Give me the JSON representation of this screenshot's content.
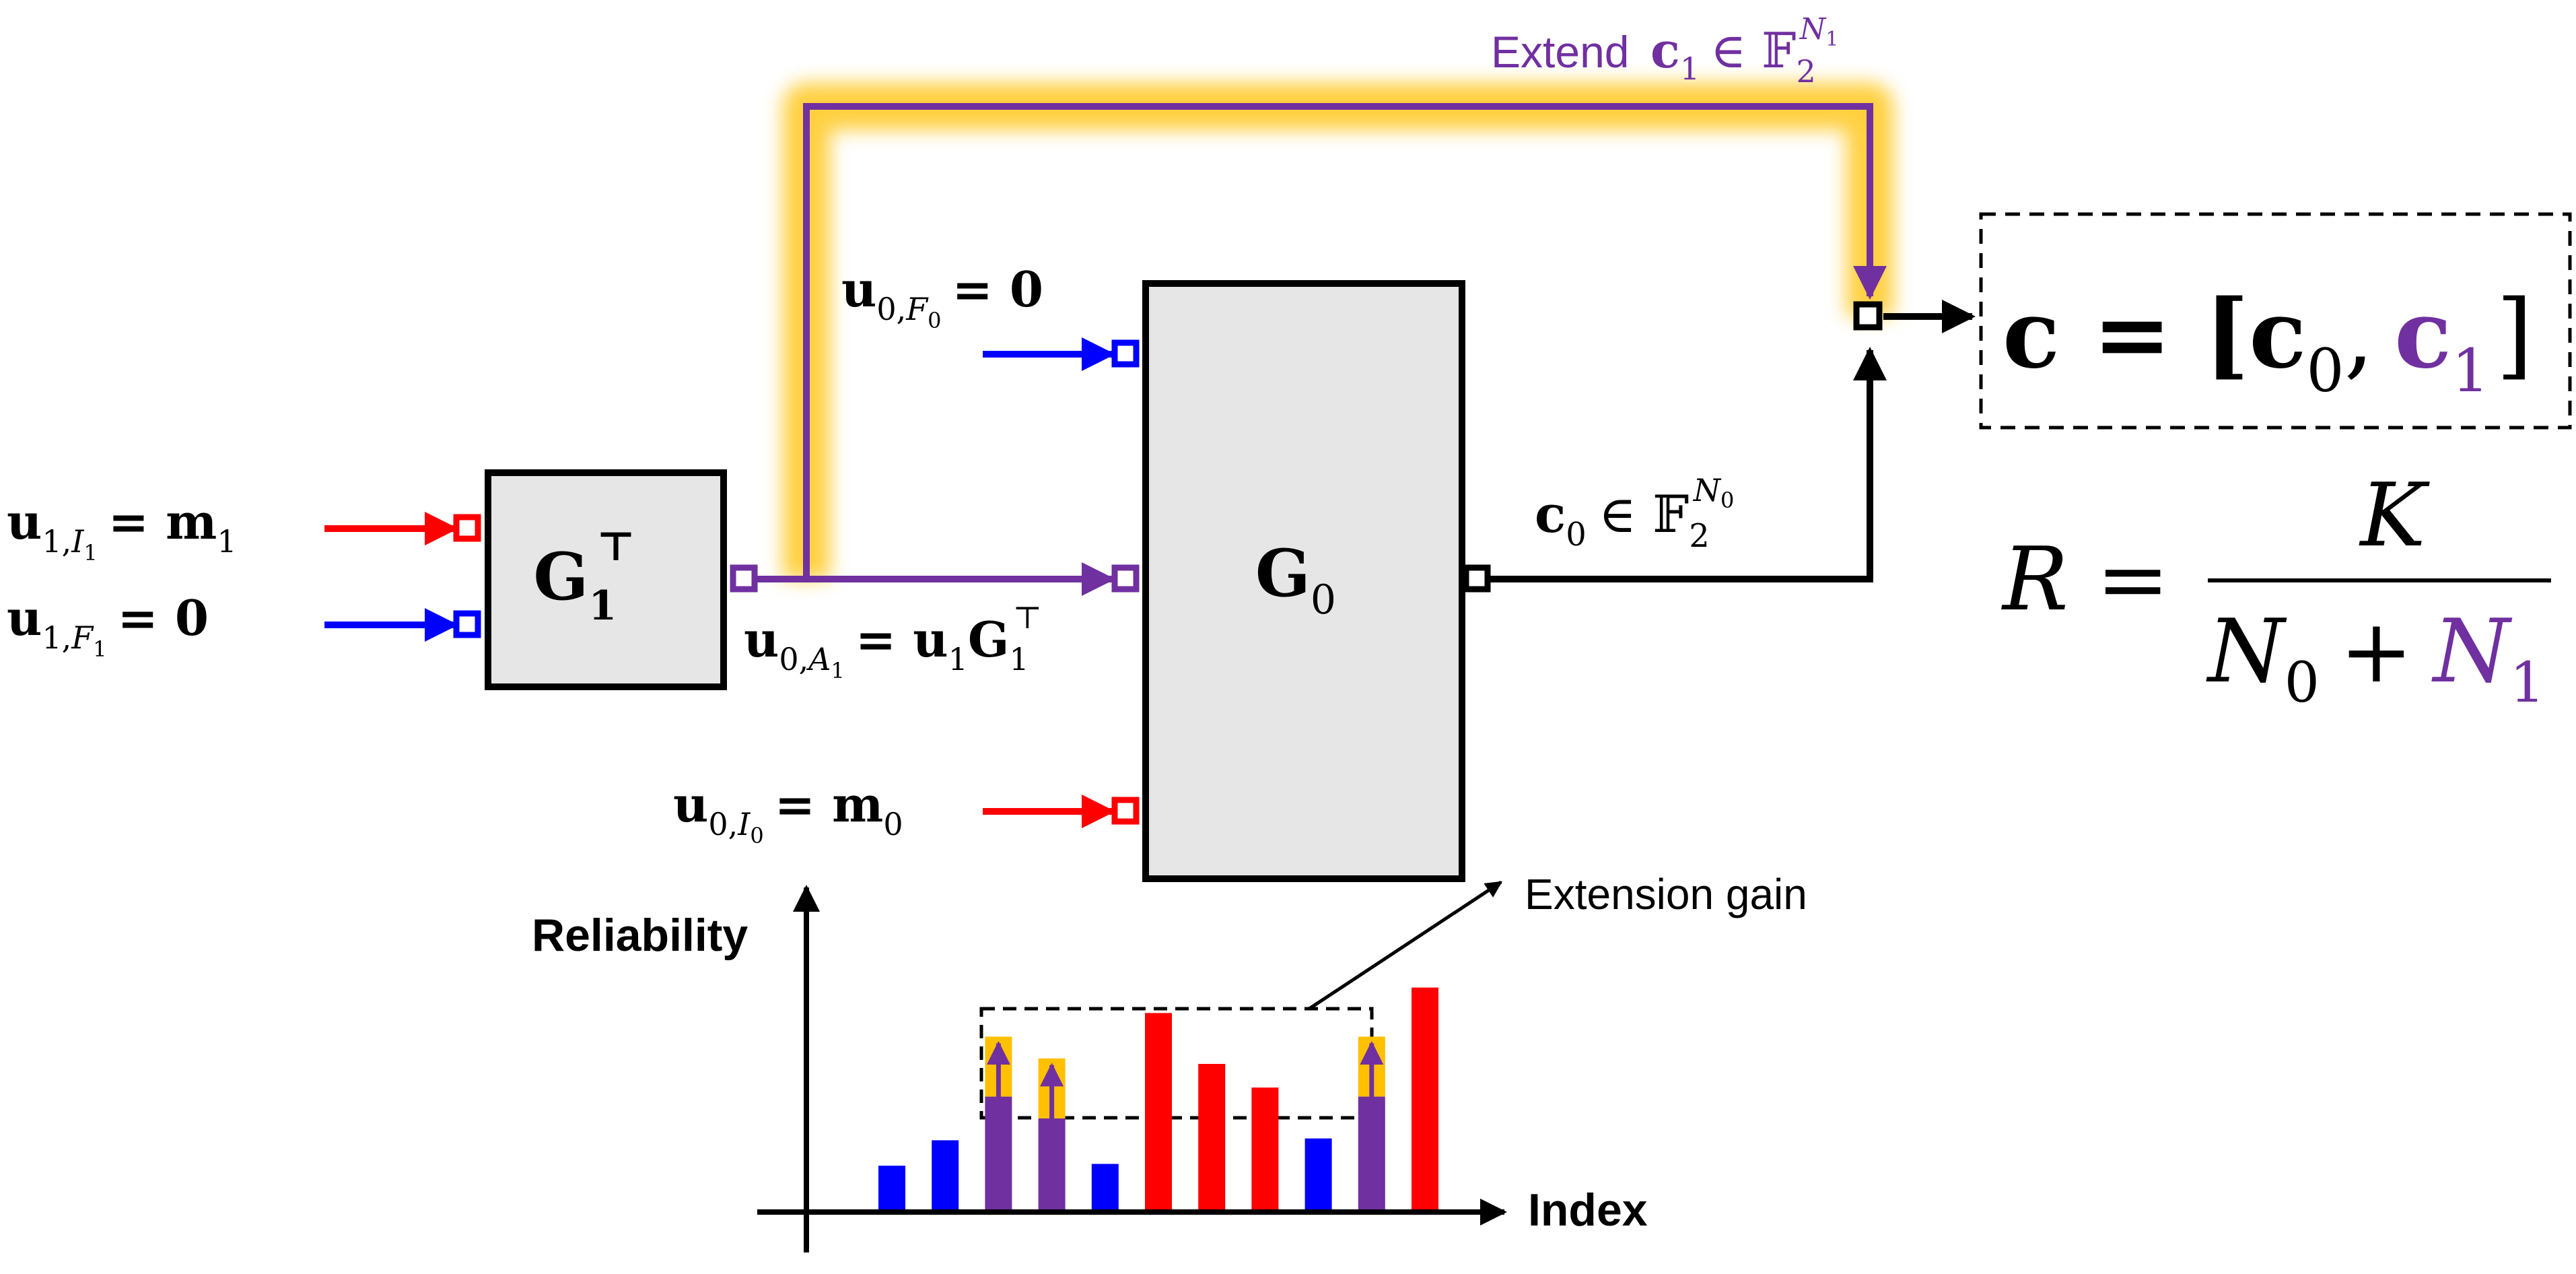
{
  "colors": {
    "red": "#ff0000",
    "blue": "#0000ff",
    "purple": "#7030a0",
    "black": "#000000",
    "box_fill": "#e6e6e6",
    "highlight": "#ffc000"
  },
  "blocks": {
    "g1": {
      "base": "G",
      "sub": "1",
      "sup": "⊤"
    },
    "g0": {
      "base": "G",
      "sub": "0"
    }
  },
  "inputs": {
    "u1_info": {
      "base": "u",
      "sub": "1,",
      "subcal": "I",
      "subsub": "1",
      "rhs": "= m",
      "rhs_sub": "1"
    },
    "u1_frozen": {
      "base": "u",
      "sub": "1,",
      "subcal": "F",
      "subsub": "1",
      "rhs": "= 0"
    },
    "u0_frozen": {
      "base": "u",
      "sub": "0,",
      "subcal": "F",
      "subsub": "0",
      "rhs": "= 0"
    },
    "u0_a1": {
      "base": "u",
      "sub": "0,",
      "subcal": "A",
      "subsub": "1",
      "rhs": "= u",
      "rhs_sub": "1",
      "rhs2": "G",
      "rhs2_sub": "1",
      "rhs2_sup": "⊤"
    },
    "u0_info": {
      "base": "u",
      "sub": "0,",
      "subcal": "I",
      "subsub": "0",
      "rhs": "= m",
      "rhs_sub": "0"
    }
  },
  "outputs": {
    "c0": {
      "base": "c",
      "sub": "0",
      "rel": "∈ 𝔽",
      "field_sub": "2",
      "field_sup": "N",
      "field_sup_sub": "0"
    },
    "extend": {
      "word": "Extend",
      "base": "c",
      "sub": "1",
      "rel": "∈ 𝔽",
      "field_sub": "2",
      "field_sup": "N",
      "field_sup_sub": "1"
    },
    "codeword": {
      "lhs": "c = [",
      "c0": "c",
      "c0_sub": "0",
      "comma": ",",
      "c1": "c",
      "c1_sub": "1",
      "close": "]"
    }
  },
  "rate": {
    "lhs": "R =",
    "num": "K",
    "den_a": "N",
    "den_a_sub": "0",
    "plus": "+",
    "den_b": "N",
    "den_b_sub": "1"
  },
  "chart_data": {
    "type": "bar",
    "ylabel": "Reliability",
    "xlabel": "Index",
    "annotation": "Extension gain",
    "bars": [
      {
        "value": 0.24,
        "color": "blue"
      },
      {
        "value": 0.38,
        "color": "blue"
      },
      {
        "value": 0.62,
        "color": "purple",
        "gain": 0.33
      },
      {
        "value": 0.5,
        "color": "purple",
        "gain": 0.33
      },
      {
        "value": 0.25,
        "color": "blue"
      },
      {
        "value": 1.08,
        "color": "red"
      },
      {
        "value": 0.8,
        "color": "red"
      },
      {
        "value": 0.67,
        "color": "red"
      },
      {
        "value": 0.39,
        "color": "blue"
      },
      {
        "value": 0.62,
        "color": "purple",
        "gain": 0.33
      },
      {
        "value": 1.22,
        "color": "red"
      }
    ]
  }
}
